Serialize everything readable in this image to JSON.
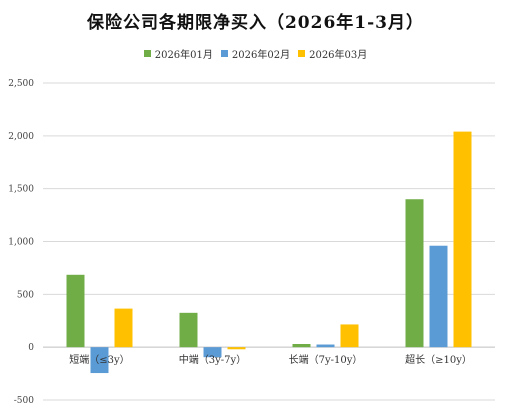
{
  "chart_data": {
    "type": "bar",
    "title": "保险公司各期限净买入（2026年1-3月）",
    "categories": [
      "短端（≤3y）",
      "中端（3y-7y）",
      "长端（7y-10y）",
      "超长（≥10y）"
    ],
    "series": [
      {
        "name": "2026年01月",
        "color": "#70AD47",
        "values": [
          685,
          325,
          30,
          1400
        ]
      },
      {
        "name": "2026年02月",
        "color": "#5B9BD5",
        "values": [
          -245,
          -95,
          25,
          960
        ]
      },
      {
        "name": "2026年03月",
        "color": "#FFC000",
        "values": [
          365,
          -20,
          215,
          2040
        ]
      }
    ],
    "yticks": [
      -500,
      0,
      500,
      1000,
      1500,
      2000,
      2500
    ],
    "ytick_labels": [
      "-500",
      "0",
      "500",
      "1,000",
      "1,500",
      "2,000",
      "2,500"
    ],
    "ylim": [
      -500,
      2500
    ],
    "grid": true,
    "legend_position": "top"
  }
}
